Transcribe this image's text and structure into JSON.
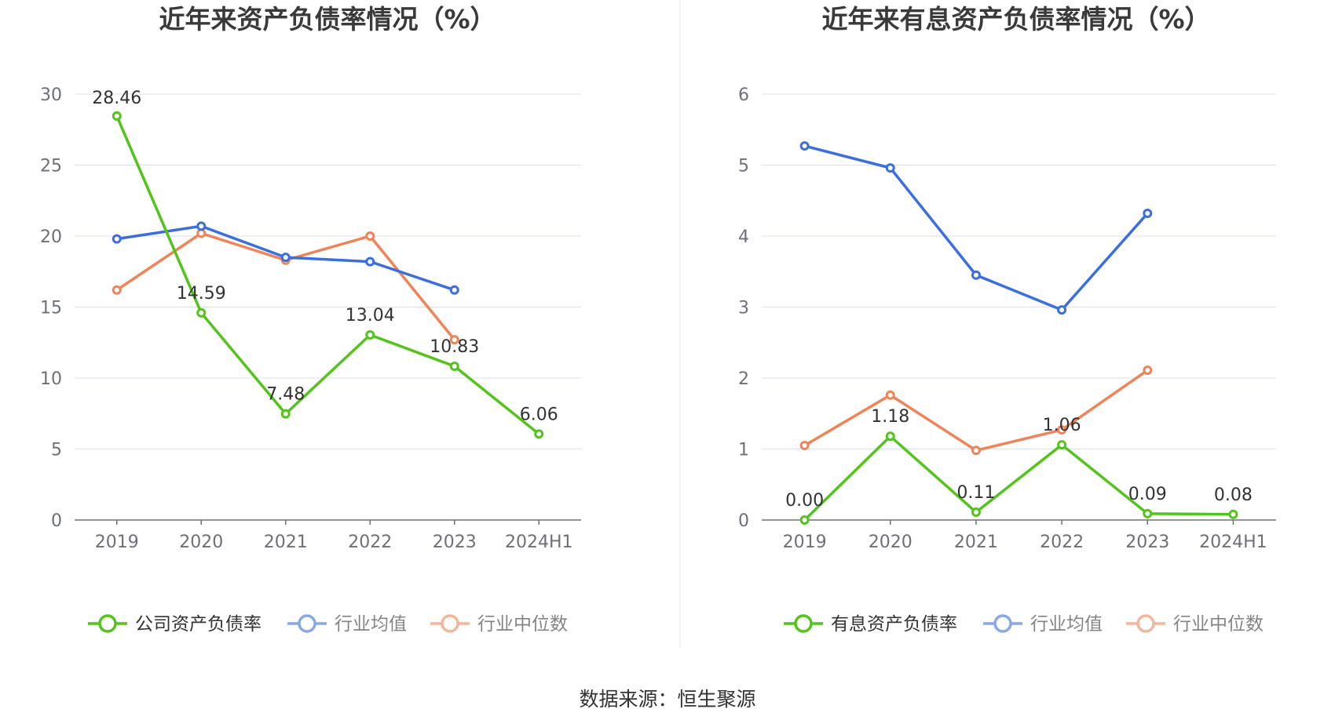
{
  "source_label": "数据来源：恒生聚源",
  "colors": {
    "company": "#52c41a",
    "avg": "#3b6fe0",
    "median": "#f08458",
    "grid": "#dde1ef",
    "axis": "#6e7079"
  },
  "chart_data": [
    {
      "type": "line",
      "title": "近年来资产负债率情况（%）",
      "categories": [
        "2019",
        "2020",
        "2021",
        "2022",
        "2023",
        "2024H1"
      ],
      "ylim": [
        0,
        30
      ],
      "yticks": [
        "0",
        "5",
        "10",
        "15",
        "20",
        "25",
        "30"
      ],
      "grid": true,
      "legend_position": "bottom",
      "series": [
        {
          "name": "公司资产负债率",
          "color": "#52c41a",
          "values": [
            28.46,
            14.59,
            7.48,
            13.04,
            10.83,
            6.06
          ],
          "labels": [
            "28.46",
            "14.59",
            "7.48",
            "13.04",
            "10.83",
            "6.06"
          ]
        },
        {
          "name": "行业均值",
          "color": "#3b6fe0",
          "values": [
            19.8,
            20.7,
            18.5,
            18.2,
            16.2,
            null
          ]
        },
        {
          "name": "行业中位数",
          "color": "#f08458",
          "values": [
            16.2,
            20.2,
            18.3,
            20.0,
            12.7,
            null
          ]
        }
      ]
    },
    {
      "type": "line",
      "title": "近年来有息资产负债率情况（%）",
      "categories": [
        "2019",
        "2020",
        "2021",
        "2022",
        "2023",
        "2024H1"
      ],
      "ylim": [
        0,
        6
      ],
      "yticks": [
        "0",
        "1",
        "2",
        "3",
        "4",
        "5",
        "6"
      ],
      "grid": true,
      "legend_position": "bottom",
      "series": [
        {
          "name": "有息资产负债率",
          "color": "#52c41a",
          "values": [
            0.0,
            1.18,
            0.11,
            1.06,
            0.09,
            0.08
          ],
          "labels": [
            "0.00",
            "1.18",
            "0.11",
            "1.06",
            "0.09",
            "0.08"
          ]
        },
        {
          "name": "行业均值",
          "color": "#3b6fe0",
          "values": [
            5.27,
            4.96,
            3.45,
            2.96,
            4.32,
            null
          ]
        },
        {
          "name": "行业中位数",
          "color": "#f08458",
          "values": [
            1.05,
            1.76,
            0.98,
            1.27,
            2.11,
            null
          ]
        }
      ]
    }
  ]
}
